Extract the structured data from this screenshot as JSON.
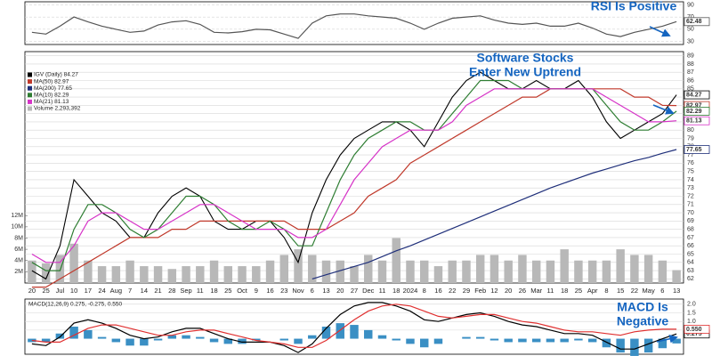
{
  "chart_data": [
    {
      "type": "line",
      "annotation_lines": [
        "RSI Is Positive"
      ],
      "ylim": [
        25,
        95
      ],
      "yticks": [
        30,
        50,
        70,
        90
      ],
      "grid": true,
      "series": [
        {
          "color": "#555555",
          "last_label": "62.48",
          "values": [
            45,
            42,
            55,
            70,
            62,
            55,
            50,
            45,
            47,
            57,
            62,
            64,
            58,
            45,
            44,
            46,
            50,
            49,
            42,
            35,
            60,
            72,
            75,
            75,
            72,
            70,
            68,
            60,
            50,
            60,
            68,
            70,
            72,
            65,
            60,
            58,
            60,
            55,
            55,
            60,
            52,
            42,
            38,
            45,
            50,
            55,
            62.48
          ]
        }
      ]
    },
    {
      "type": "line",
      "annotation_lines": [
        "Software Stocks",
        "Enter New Uptrend"
      ],
      "categories": [
        "20",
        "25",
        "Jul",
        "10",
        "17",
        "24",
        "Aug",
        "7",
        "14",
        "21",
        "28",
        "Sep",
        "11",
        "18",
        "25",
        "Oct",
        "9",
        "16",
        "23",
        "Nov",
        "6",
        "13",
        "20",
        "27",
        "Dec",
        "11",
        "18",
        "2024",
        "8",
        "16",
        "22",
        "29",
        "Feb",
        "12",
        "20",
        "26",
        "Mar",
        "11",
        "18",
        "25",
        "Apr",
        "8",
        "15",
        "22",
        "May",
        "6",
        "13"
      ],
      "ylim": [
        61.5,
        89.5
      ],
      "yticks": [
        62,
        63,
        64,
        65,
        66,
        67,
        68,
        69,
        70,
        71,
        72,
        73,
        74,
        75,
        76,
        77,
        78,
        79,
        80,
        81,
        82,
        83,
        84,
        85,
        86,
        87,
        88,
        89
      ],
      "y2lim": [
        0,
        14000000
      ],
      "y2ticks": [
        {
          "value": 2000000,
          "label": "2M"
        },
        {
          "value": 4000000,
          "label": "4M"
        },
        {
          "value": 6000000,
          "label": "6M"
        },
        {
          "value": 8000000,
          "label": "8M"
        },
        {
          "value": 10000000,
          "label": "10M"
        },
        {
          "value": 12000000,
          "label": "12M"
        }
      ],
      "grid": true,
      "series": [
        {
          "name": "IGV (Daily) 84.27",
          "color": "#000000",
          "last_label": "84.27",
          "values": [
            63,
            62,
            66,
            74,
            72,
            70,
            69,
            67,
            67,
            70,
            72,
            73,
            72,
            69,
            68,
            68,
            69,
            69,
            67,
            64,
            70,
            74,
            77,
            79,
            80,
            81,
            81,
            80,
            78,
            81,
            84,
            86,
            87,
            86,
            85,
            85,
            86,
            85,
            85,
            86,
            84,
            81,
            79,
            80,
            81,
            82,
            84.27
          ]
        },
        {
          "name": "MA(50) 82.97",
          "color": "#c0392b",
          "last_label": "82.97",
          "values": [
            61,
            61,
            62,
            63,
            64,
            65,
            66,
            67,
            67,
            67,
            68,
            68,
            69,
            69,
            69,
            69,
            69,
            69,
            69,
            68,
            68,
            68,
            69,
            70,
            72,
            73,
            74,
            76,
            77,
            78,
            79,
            80,
            81,
            82,
            83,
            84,
            84,
            85,
            85,
            85,
            85,
            85,
            85,
            84,
            84,
            83,
            82.97
          ]
        },
        {
          "name": "MA(200) 77.65",
          "color": "#1f2f7a",
          "last_label": "77.65",
          "values": [
            null,
            null,
            null,
            null,
            null,
            null,
            null,
            null,
            null,
            null,
            null,
            null,
            null,
            null,
            null,
            null,
            null,
            null,
            null,
            null,
            62,
            62.5,
            63,
            63.5,
            64,
            64.7,
            65.4,
            66,
            66.7,
            67.4,
            68.1,
            68.8,
            69.5,
            70.2,
            70.9,
            71.6,
            72.3,
            73,
            73.6,
            74.2,
            74.8,
            75.3,
            75.8,
            76.3,
            76.7,
            77.2,
            77.65
          ]
        },
        {
          "name": "MA(10) 82.29",
          "color": "#2e7d32",
          "last_label": "82.29",
          "values": [
            64,
            63,
            63,
            68,
            71,
            71,
            70,
            68,
            67,
            68,
            70,
            72,
            72,
            71,
            69,
            68,
            68,
            69,
            68,
            66,
            66,
            70,
            74,
            77,
            79,
            80,
            81,
            81,
            80,
            80,
            82,
            84,
            86,
            86,
            86,
            85,
            85,
            85,
            85,
            85,
            85,
            83,
            81,
            80,
            80,
            81,
            82.29
          ]
        },
        {
          "name": "MA(21) 81.13",
          "color": "#d633c7",
          "last_label": "81.13",
          "values": [
            65,
            64,
            64,
            66,
            69,
            70,
            70,
            69,
            68,
            68,
            69,
            70,
            71,
            71,
            70,
            69,
            68,
            68,
            68,
            67,
            67,
            68,
            71,
            74,
            76,
            78,
            79,
            80,
            80,
            80,
            81,
            83,
            84,
            85,
            85,
            85,
            85,
            85,
            85,
            85,
            85,
            84,
            83,
            82,
            81,
            81,
            81.13
          ]
        },
        {
          "name": "Volume 2,293,392",
          "color": "#b8b8b8",
          "type": "bar",
          "axis": "y2",
          "values": [
            4000000,
            3500000,
            5000000,
            7000000,
            4000000,
            3000000,
            3000000,
            4000000,
            3000000,
            3000000,
            2500000,
            3000000,
            3000000,
            4000000,
            3000000,
            3000000,
            3000000,
            4000000,
            5000000,
            6000000,
            5000000,
            4000000,
            4000000,
            3000000,
            5000000,
            4000000,
            8000000,
            4000000,
            4000000,
            3000000,
            4000000,
            4000000,
            5000000,
            5000000,
            4000000,
            5000000,
            4000000,
            4000000,
            6000000,
            4000000,
            4000000,
            4000000,
            6000000,
            5000000,
            5000000,
            4000000,
            2293392
          ]
        }
      ]
    },
    {
      "type": "line",
      "legend": "MACD(12,26,9) 0.275, -0.275, 0.550",
      "annotation_lines": [
        "MACD Is",
        "Negative"
      ],
      "ylim": [
        -0.9,
        2.3
      ],
      "yticks": [
        0.5,
        {
          "value": 1,
          "label": "1.0"
        },
        1.5,
        {
          "value": 2,
          "label": "2.0"
        }
      ],
      "grid": true,
      "series": [
        {
          "color": "#3a8fc4",
          "type": "bar",
          "values": [
            -0.2,
            -0.2,
            0.3,
            0.7,
            0.5,
            0.1,
            -0.2,
            -0.4,
            -0.4,
            -0.1,
            0.2,
            0.2,
            0.1,
            -0.2,
            -0.3,
            -0.3,
            -0.1,
            0,
            -0.1,
            -0.3,
            0.2,
            0.7,
            0.9,
            0.8,
            0.5,
            0.2,
            -0.1,
            -0.3,
            -0.5,
            -0.3,
            0,
            0.1,
            0.1,
            -0.1,
            -0.2,
            -0.2,
            -0.2,
            -0.2,
            -0.2,
            -0.1,
            -0.2,
            -0.5,
            -0.8,
            -1.0,
            -0.8,
            -0.55,
            -0.275
          ]
        },
        {
          "color": "#000000",
          "last_label": "0.275",
          "values": [
            -0.3,
            -0.4,
            0.1,
            0.9,
            1.1,
            0.9,
            0.6,
            0.2,
            0,
            0.1,
            0.4,
            0.6,
            0.6,
            0.3,
            0,
            -0.2,
            -0.2,
            -0.2,
            -0.4,
            -0.8,
            -0.3,
            0.6,
            1.4,
            1.9,
            2.1,
            2.1,
            1.9,
            1.6,
            1.1,
            1.0,
            1.2,
            1.4,
            1.5,
            1.3,
            1.0,
            0.8,
            0.7,
            0.5,
            0.3,
            0.3,
            0.2,
            -0.2,
            -0.6,
            -0.6,
            -0.3,
            0,
            0.275
          ]
        },
        {
          "color": "#e03030",
          "last_label": "0.550",
          "values": [
            -0.1,
            -0.2,
            -0.2,
            0.2,
            0.6,
            0.8,
            0.8,
            0.6,
            0.4,
            0.2,
            0.2,
            0.4,
            0.5,
            0.5,
            0.3,
            0.1,
            -0.1,
            -0.2,
            -0.3,
            -0.5,
            -0.5,
            -0.1,
            0.5,
            1.1,
            1.6,
            1.9,
            2.0,
            1.9,
            1.6,
            1.3,
            1.2,
            1.3,
            1.4,
            1.4,
            1.2,
            1.0,
            0.9,
            0.7,
            0.5,
            0.4,
            0.4,
            0.3,
            0.2,
            0.4,
            0.5,
            0.55,
            0.55
          ]
        }
      ]
    }
  ]
}
